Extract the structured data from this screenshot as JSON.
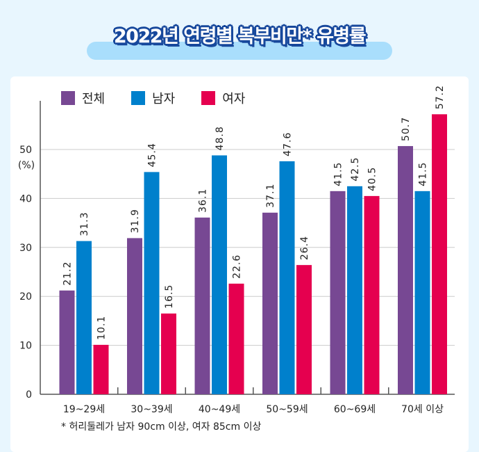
{
  "title": "2022년 연령별 복부비만* 유병률",
  "footnote": "* 허리둘레가 남자 90cm 이상, 여자 85cm 이상",
  "chart_data": {
    "type": "bar",
    "title": "2022년 연령별 복부비만* 유병률",
    "ylabel": "(%)",
    "ylim": [
      0,
      60
    ],
    "yticks": [
      0,
      10,
      20,
      30,
      40,
      50
    ],
    "grid": true,
    "legend_position": "top-left",
    "categories": [
      "19~29세",
      "30~39세",
      "40~49세",
      "50~59세",
      "60~69세",
      "70세 이상"
    ],
    "series": [
      {
        "name": "전체",
        "color": "#774893",
        "values": [
          21.2,
          31.9,
          36.1,
          37.1,
          41.5,
          50.7
        ]
      },
      {
        "name": "남자",
        "color": "#0080cc",
        "values": [
          31.3,
          45.4,
          48.8,
          47.6,
          42.5,
          41.5
        ]
      },
      {
        "name": "여자",
        "color": "#e5004f",
        "values": [
          10.1,
          16.5,
          22.6,
          26.4,
          40.5,
          57.2
        ]
      }
    ]
  }
}
